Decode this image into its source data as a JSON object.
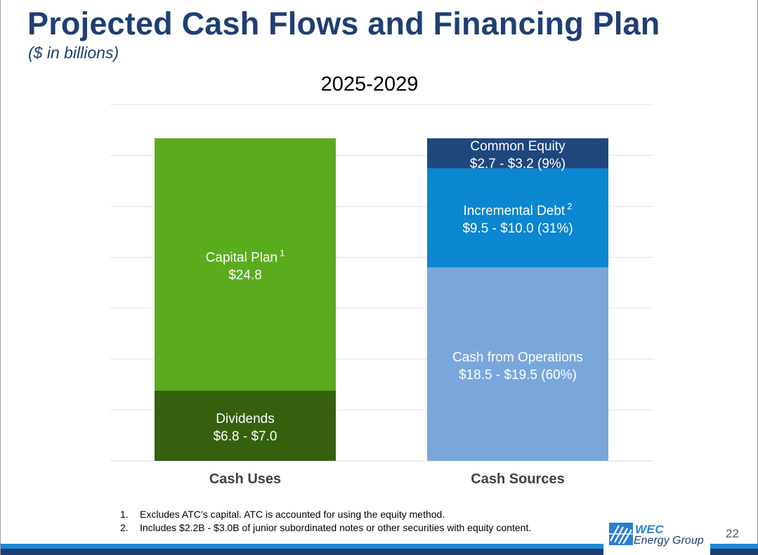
{
  "page": {
    "title": "Projected Cash Flows and Financing Plan",
    "subtitle": "($ in billions)",
    "page_number": "22"
  },
  "chart_data": {
    "type": "bar",
    "stacked": true,
    "title": "2025-2029",
    "categories": [
      "Cash Uses",
      "Cash Sources"
    ],
    "ylim": [
      0,
      35
    ],
    "grid": true,
    "stacks": [
      {
        "category": "Cash Uses",
        "segments": [
          {
            "name": "Dividends",
            "label_line1": "Dividends",
            "label_line2": "$6.8 - $7.0",
            "value": 6.9,
            "color": "#35600e"
          },
          {
            "name": "Capital Plan",
            "label_line1": "Capital Plan",
            "superscript": "1",
            "label_line2": "$24.8",
            "value": 24.8,
            "color": "#5aab1e"
          }
        ]
      },
      {
        "category": "Cash Sources",
        "segments": [
          {
            "name": "Cash from Operations",
            "label_line1": "Cash from Operations",
            "label_line2": "$18.5 - $19.5 (60%)",
            "value": 19.0,
            "color": "#79a7dc"
          },
          {
            "name": "Incremental Debt",
            "label_line1": "Incremental Debt",
            "superscript": "2",
            "label_line2": "$9.5 - $10.0 (31%)",
            "value": 9.75,
            "color": "#0b86d0"
          },
          {
            "name": "Common Equity",
            "label_line1": "Common Equity",
            "label_line2": "$2.7 - $3.2 (9%)",
            "value": 2.95,
            "color": "#1f477e"
          }
        ]
      }
    ]
  },
  "footnotes": [
    {
      "num": "1.",
      "text": "Excludes ATC’s capital. ATC is accounted for using the equity method."
    },
    {
      "num": "2.",
      "text": "Includes $2.2B - $3.0B of junior subordinated notes or other securities with equity content."
    }
  ],
  "logo": {
    "line1": "WEC",
    "line2": "Energy Group"
  },
  "colors": {
    "title": "#1f3f73",
    "bar_light_blue": "#1e88d8",
    "bar_dark_blue": "#1f3f73"
  }
}
